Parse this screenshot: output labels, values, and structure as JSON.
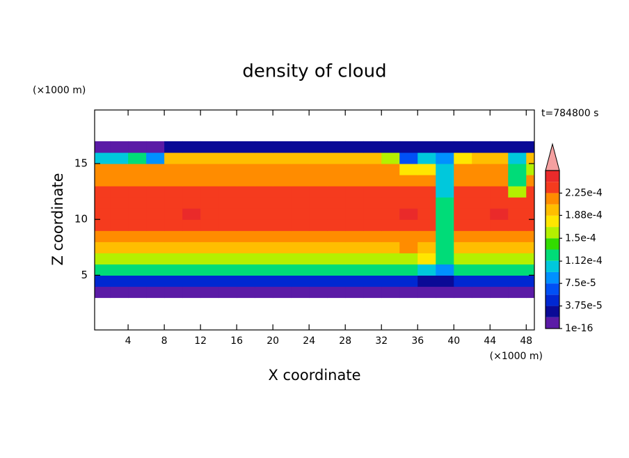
{
  "chart_data": {
    "type": "contour",
    "title": "density of cloud",
    "xlabel": "X coordinate",
    "ylabel": "Z coordinate",
    "xunit": "(×1000 m)",
    "yunit": "(×1000 m)",
    "time_label": "t=784800 s",
    "xlim": [
      0.3,
      48.9
    ],
    "ylim": [
      0.1,
      19.8
    ],
    "xticks": [
      4,
      8,
      12,
      16,
      20,
      24,
      28,
      32,
      36,
      40,
      44,
      48
    ],
    "yticks": [
      5,
      10,
      15
    ],
    "x": [
      1,
      3,
      5,
      7,
      9,
      11,
      13,
      15,
      17,
      19,
      21,
      23,
      25,
      27,
      29,
      31,
      33,
      35,
      37,
      39,
      41,
      43,
      45,
      47,
      49
    ],
    "z": [
      3.5,
      4.5,
      5.5,
      6.5,
      7.5,
      8.5,
      9.5,
      10.5,
      11.5,
      12.5,
      13.5,
      14.5,
      15.5,
      16.5
    ],
    "values": [
      [
        1e-05,
        1e-05,
        1e-05,
        1e-05,
        1e-05,
        1e-05,
        1e-05,
        1e-05,
        1e-05,
        1e-05,
        1e-05,
        1e-05,
        1e-05,
        1e-05,
        1e-05,
        1e-05,
        1e-05,
        1e-05,
        1e-05,
        1e-05,
        1e-05,
        1e-05,
        1e-05,
        1e-05,
        1e-05
      ],
      [
        5e-05,
        5e-05,
        5e-05,
        5e-05,
        5e-05,
        5e-05,
        5e-05,
        5e-05,
        5e-05,
        5e-05,
        5e-05,
        5e-05,
        5e-05,
        5e-05,
        5e-05,
        5e-05,
        5e-05,
        5e-05,
        3e-05,
        3e-05,
        5e-05,
        5e-05,
        5e-05,
        5e-05,
        5e-05
      ],
      [
        0.00012,
        0.00012,
        0.00012,
        0.00012,
        0.00012,
        0.00012,
        0.00012,
        0.00012,
        0.00012,
        0.00012,
        0.00012,
        0.00012,
        0.00012,
        0.00012,
        0.00012,
        0.00012,
        0.00012,
        0.00012,
        0.0001,
        9e-05,
        0.00012,
        0.00012,
        0.00012,
        0.00012,
        0.00012
      ],
      [
        0.00016,
        0.00016,
        0.00016,
        0.00016,
        0.00016,
        0.00016,
        0.00016,
        0.00016,
        0.00016,
        0.00016,
        0.00016,
        0.00016,
        0.00016,
        0.00016,
        0.00016,
        0.00016,
        0.00016,
        0.00016,
        0.00017,
        0.00012,
        0.00016,
        0.00016,
        0.00016,
        0.00016,
        0.00016
      ],
      [
        0.000195,
        0.000195,
        0.000195,
        0.000195,
        0.000195,
        0.000195,
        0.000195,
        0.000195,
        0.000195,
        0.000195,
        0.000195,
        0.000195,
        0.000195,
        0.000195,
        0.000195,
        0.000195,
        0.000195,
        0.00021,
        0.0002,
        0.00012,
        0.000195,
        0.000195,
        0.000195,
        0.000195,
        0.000195
      ],
      [
        0.000215,
        0.000215,
        0.000215,
        0.000215,
        0.000215,
        0.000215,
        0.000215,
        0.000215,
        0.000215,
        0.000215,
        0.000215,
        0.000215,
        0.000215,
        0.000215,
        0.000215,
        0.000215,
        0.000215,
        0.000215,
        0.00022,
        0.00012,
        0.000215,
        0.000215,
        0.000215,
        0.000215,
        0.000215
      ],
      [
        0.00023,
        0.00023,
        0.00023,
        0.00023,
        0.00023,
        0.00023,
        0.00023,
        0.00023,
        0.00023,
        0.00023,
        0.00023,
        0.00023,
        0.00023,
        0.00023,
        0.00023,
        0.00023,
        0.00023,
        0.00023,
        0.00023,
        0.00013,
        0.00023,
        0.00023,
        0.00023,
        0.00023,
        0.00023
      ],
      [
        0.000235,
        0.000235,
        0.000235,
        0.000235,
        0.000235,
        0.00025,
        0.000235,
        0.000235,
        0.000235,
        0.000235,
        0.000235,
        0.000235,
        0.000235,
        0.000235,
        0.000235,
        0.000235,
        0.000235,
        0.00025,
        0.000235,
        0.00012,
        0.000235,
        0.000235,
        0.00025,
        0.000235,
        0.000235
      ],
      [
        0.000235,
        0.000235,
        0.000235,
        0.000235,
        0.000235,
        0.000235,
        0.000235,
        0.000235,
        0.000235,
        0.000235,
        0.000235,
        0.000235,
        0.000235,
        0.000235,
        0.000235,
        0.000235,
        0.000235,
        0.000235,
        0.00023,
        0.00012,
        0.000235,
        0.000235,
        0.000235,
        0.000235,
        0.000235
      ],
      [
        0.00023,
        0.00023,
        0.00023,
        0.00023,
        0.00023,
        0.00023,
        0.00023,
        0.00023,
        0.00023,
        0.00023,
        0.00023,
        0.00023,
        0.00023,
        0.00023,
        0.00023,
        0.00023,
        0.00023,
        0.00023,
        0.00023,
        0.00011,
        0.00023,
        0.00023,
        0.00023,
        0.00015,
        0.00023
      ],
      [
        0.00022,
        0.00022,
        0.00022,
        0.00022,
        0.00022,
        0.00022,
        0.00022,
        0.00022,
        0.00022,
        0.00022,
        0.00022,
        0.00022,
        0.00022,
        0.00022,
        0.00022,
        0.00022,
        0.00022,
        0.00022,
        0.00021,
        0.0001,
        0.00022,
        0.00022,
        0.00022,
        0.00013,
        0.00022
      ],
      [
        0.00021,
        0.00021,
        0.00021,
        0.00021,
        0.00021,
        0.00021,
        0.00021,
        0.00021,
        0.00021,
        0.00021,
        0.00021,
        0.00021,
        0.00021,
        0.00021,
        0.00021,
        0.00021,
        0.00021,
        0.00017,
        0.00017,
        0.0001,
        0.00021,
        0.00021,
        0.00021,
        0.00012,
        0.00016
      ],
      [
        0.0001,
        0.0001,
        0.00012,
        8e-05,
        0.00019,
        0.000195,
        0.000195,
        0.000195,
        0.000195,
        0.000195,
        0.000195,
        0.000195,
        0.000195,
        0.000195,
        0.000195,
        0.000195,
        0.00015,
        6e-05,
        0.0001,
        8e-05,
        0.00018,
        0.00019,
        0.00019,
        0.0001,
        0.00019
      ],
      [
        1.5e-05,
        1.5e-05,
        1.5e-05,
        1.5e-05,
        3e-05,
        3e-05,
        3e-05,
        3e-05,
        3e-05,
        3e-05,
        3e-05,
        3e-05,
        3e-05,
        3e-05,
        3e-05,
        3e-05,
        3e-05,
        3e-05,
        3e-05,
        3e-05,
        3e-05,
        3e-05,
        3e-05,
        3e-05,
        3e-05
      ]
    ],
    "levels": [
      1e-16,
      1.875e-05,
      3.75e-05,
      5.625e-05,
      7.5e-05,
      9.375e-05,
      0.0001125,
      0.00013125,
      0.00015,
      0.00016875,
      0.0001875,
      0.00020625,
      0.000225,
      0.00024375,
      0.0002625
    ],
    "colors": [
      "#5b1ba6",
      "#0a0a96",
      "#0028d2",
      "#0050f5",
      "#0090ff",
      "#00c8dc",
      "#00dc78",
      "#32dc00",
      "#b4f000",
      "#ffe600",
      "#ffbe00",
      "#ff8c00",
      "#f53b1e",
      "#ea2a2a"
    ],
    "extend_color": "#f4a0a0",
    "colorbar_ticks": [
      1e-16,
      {
        "value": 3.75e-05,
        "label": "3.75e-5"
      },
      {
        "value": 7.5e-05,
        "label": "7.5e-5"
      },
      {
        "value": 0.000112,
        "label": "1.12e-4"
      },
      {
        "value": 0.00015,
        "label": "1.5e-4"
      },
      {
        "value": 0.000188,
        "label": "1.88e-4"
      },
      {
        "value": 0.000225,
        "label": "2.25e-4"
      }
    ]
  }
}
